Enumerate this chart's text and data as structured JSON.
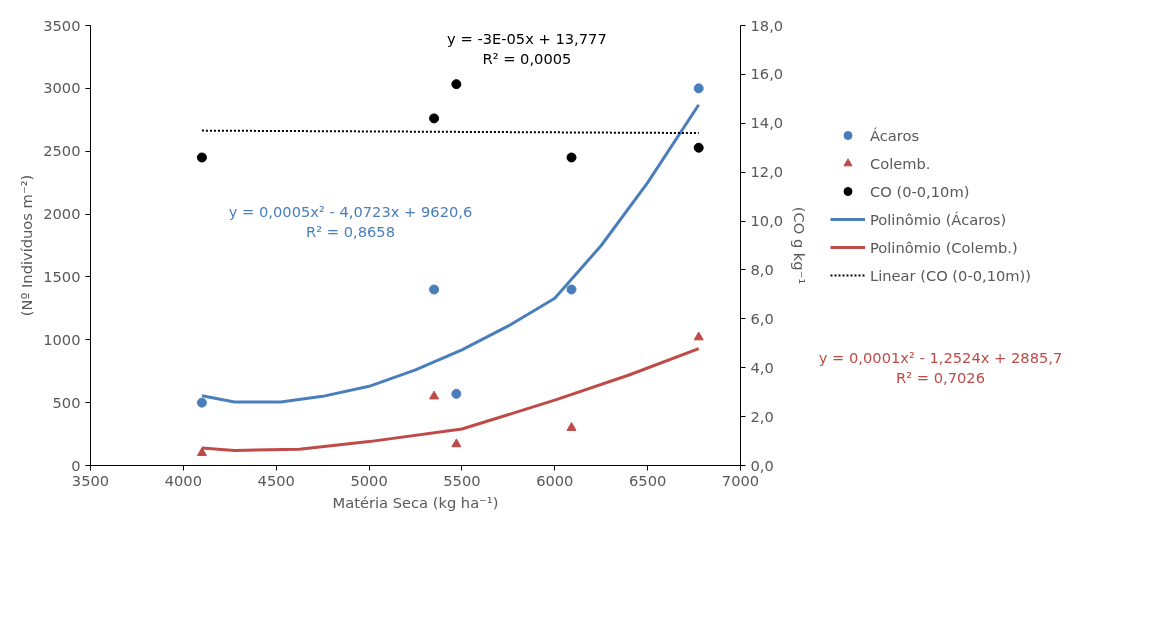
{
  "chart_data": {
    "type": "scatter",
    "xlabel": "Matéria Seca (kg ha⁻¹)",
    "ylabel": "(Nº Indivíduos m⁻²)",
    "y2label": "(CO g kg⁻¹",
    "xlim": [
      3500,
      7000
    ],
    "xticks": [
      3500,
      4000,
      4500,
      5000,
      5500,
      6000,
      6500,
      7000
    ],
    "ylim": [
      0,
      3500
    ],
    "yticks": [
      0,
      500,
      1000,
      1500,
      2000,
      2500,
      3000,
      3500
    ],
    "y2lim": [
      0,
      18
    ],
    "y2ticks": [
      {
        "value": 0,
        "label": "0,0"
      },
      {
        "value": 2,
        "label": "2,0"
      },
      {
        "value": 4,
        "label": "4,0"
      },
      {
        "value": 6,
        "label": "6,0"
      },
      {
        "value": 8,
        "label": "8,0"
      },
      {
        "value": 10,
        "label": "10,0"
      },
      {
        "value": 12,
        "label": "12,0"
      },
      {
        "value": 14,
        "label": "14,0"
      },
      {
        "value": 16,
        "label": "16,0"
      },
      {
        "value": 18,
        "label": "18,0"
      }
    ],
    "grid": false,
    "legend": "right",
    "series": [
      {
        "name": "Ácaros",
        "type": "scatter",
        "marker": "circle",
        "color": "#4a7ebb",
        "x": [
          4100,
          5350,
          5470,
          6090,
          6775
        ],
        "values": [
          500,
          1400,
          570,
          1400,
          3000
        ]
      },
      {
        "name": "Colemb.",
        "type": "scatter",
        "marker": "triangle",
        "color": "#be4b48",
        "x": [
          4100,
          5350,
          5470,
          6090,
          6775
        ],
        "values": [
          100,
          550,
          170,
          300,
          1020
        ]
      },
      {
        "name": "CO (0-0,10m)",
        "type": "scatter",
        "marker": "circle",
        "color": "#000000",
        "axis": "y2",
        "x": [
          4100,
          5350,
          5470,
          6090,
          6775
        ],
        "values": [
          12.6,
          14.2,
          15.6,
          12.6,
          13.0
        ]
      },
      {
        "name": "Polinômio (Ácaros)",
        "type": "line",
        "line_style": "solid",
        "color": "#4a7ebb",
        "x": [
          4100,
          4275,
          4525,
          4750,
          5000,
          5250,
          5500,
          5750,
          6000,
          6250,
          6500,
          6775
        ],
        "values": [
          555,
          505,
          505,
          550,
          630,
          760,
          920,
          1110,
          1330,
          1750,
          2250,
          2870
        ]
      },
      {
        "name": "Polinômio (Colemb.)",
        "type": "line",
        "line_style": "solid",
        "color": "#be4b48",
        "x": [
          4100,
          4275,
          4625,
          5000,
          5500,
          6000,
          6400,
          6775
        ],
        "values": [
          140,
          120,
          130,
          190,
          290,
          520,
          720,
          930
        ]
      },
      {
        "name": "Linear (CO (0-0,10m))",
        "type": "line",
        "line_style": "dotted",
        "color": "#000000",
        "axis": "y2",
        "x": [
          4100,
          6775
        ],
        "values": [
          13.7,
          13.6
        ]
      }
    ],
    "annotations": [
      "y = 0,0005x² - 4,0723x + 9620,6\nR² = 0,8658",
      "y = 0,0001x² - 1,2524x + 2885,7\nR² = 0,7026",
      "y = -3E-05x + 13,777\nR² = 0,0005"
    ]
  }
}
